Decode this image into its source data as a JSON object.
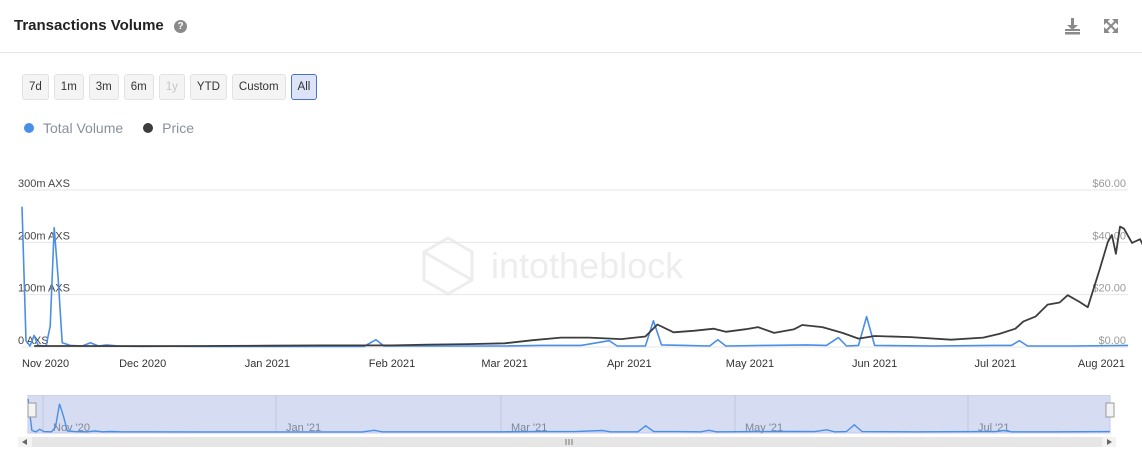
{
  "header": {
    "title": "Transactions Volume",
    "help_icon": "question-circle-icon",
    "download_icon": "download-icon",
    "fullscreen_icon": "expand-icon"
  },
  "range_buttons": [
    {
      "label": "7d",
      "state": "normal"
    },
    {
      "label": "1m",
      "state": "normal"
    },
    {
      "label": "3m",
      "state": "normal"
    },
    {
      "label": "6m",
      "state": "normal"
    },
    {
      "label": "1y",
      "state": "disabled"
    },
    {
      "label": "YTD",
      "state": "normal"
    },
    {
      "label": "Custom",
      "state": "normal"
    },
    {
      "label": "All",
      "state": "active"
    }
  ],
  "watermark": "intotheblock",
  "chart_data": {
    "type": "line",
    "title": "Transactions Volume",
    "legend_position": "top-left",
    "grid": true,
    "x_range": [
      "2020-11-01",
      "2021-08-03"
    ],
    "x_ticks": [
      "Nov 2020",
      "Dec 2020",
      "Jan 2021",
      "Feb 2021",
      "Mar 2021",
      "Apr 2021",
      "May 2021",
      "Jun 2021",
      "Jul 2021",
      "Aug 2021"
    ],
    "y_left": {
      "ticks": [
        "0 AXS",
        "100m AXS",
        "200m AXS",
        "300m AXS"
      ],
      "range": [
        0,
        300
      ]
    },
    "y_right": {
      "ticks": [
        "$0.00",
        "$20.00",
        "$40.00",
        "$60.00"
      ],
      "range": [
        0,
        60
      ]
    },
    "series": [
      {
        "name": "Total Volume",
        "color": "#4a8fe7",
        "axis": "left",
        "points": [
          [
            "2020-11-01",
            268
          ],
          [
            "2020-11-02",
            12
          ],
          [
            "2020-11-03",
            2
          ],
          [
            "2020-11-04",
            22
          ],
          [
            "2020-11-05",
            3
          ],
          [
            "2020-11-07",
            2
          ],
          [
            "2020-11-08",
            40
          ],
          [
            "2020-11-09",
            228
          ],
          [
            "2020-11-10",
            130
          ],
          [
            "2020-11-11",
            8
          ],
          [
            "2020-11-13",
            3
          ],
          [
            "2020-11-16",
            2
          ],
          [
            "2020-11-18",
            8
          ],
          [
            "2020-11-20",
            2
          ],
          [
            "2020-11-22",
            4
          ],
          [
            "2020-11-25",
            2
          ],
          [
            "2020-12-01",
            2
          ],
          [
            "2020-12-15",
            1
          ],
          [
            "2021-01-01",
            1
          ],
          [
            "2021-01-15",
            1
          ],
          [
            "2021-01-25",
            1
          ],
          [
            "2021-01-28",
            14
          ],
          [
            "2021-01-30",
            2
          ],
          [
            "2021-02-15",
            2
          ],
          [
            "2021-03-01",
            2
          ],
          [
            "2021-03-10",
            3
          ],
          [
            "2021-03-20",
            3
          ],
          [
            "2021-03-27",
            12
          ],
          [
            "2021-03-29",
            2
          ],
          [
            "2021-04-05",
            2
          ],
          [
            "2021-04-07",
            50
          ],
          [
            "2021-04-09",
            4
          ],
          [
            "2021-04-15",
            3
          ],
          [
            "2021-04-21",
            2
          ],
          [
            "2021-04-23",
            14
          ],
          [
            "2021-04-25",
            2
          ],
          [
            "2021-05-05",
            3
          ],
          [
            "2021-05-15",
            4
          ],
          [
            "2021-05-20",
            3
          ],
          [
            "2021-05-23",
            18
          ],
          [
            "2021-05-25",
            2
          ],
          [
            "2021-05-28",
            3
          ],
          [
            "2021-05-30",
            58
          ],
          [
            "2021-06-01",
            3
          ],
          [
            "2021-06-15",
            2
          ],
          [
            "2021-06-30",
            3
          ],
          [
            "2021-07-05",
            3
          ],
          [
            "2021-07-07",
            12
          ],
          [
            "2021-07-09",
            2
          ],
          [
            "2021-07-20",
            2
          ],
          [
            "2021-08-03",
            3
          ]
        ]
      },
      {
        "name": "Price",
        "color": "#3d3d3d",
        "axis": "right",
        "points": [
          [
            "2020-11-04",
            0.4
          ],
          [
            "2020-11-15",
            0.4
          ],
          [
            "2020-12-01",
            0.3
          ],
          [
            "2020-12-15",
            0.4
          ],
          [
            "2021-01-01",
            0.5
          ],
          [
            "2021-01-15",
            0.6
          ],
          [
            "2021-02-01",
            0.6
          ],
          [
            "2021-02-10",
            0.9
          ],
          [
            "2021-02-20",
            1.1
          ],
          [
            "2021-03-01",
            1.4
          ],
          [
            "2021-03-08",
            2.6
          ],
          [
            "2021-03-15",
            3.6
          ],
          [
            "2021-03-22",
            3.6
          ],
          [
            "2021-03-30",
            3.0
          ],
          [
            "2021-04-05",
            4.0
          ],
          [
            "2021-04-08",
            8.6
          ],
          [
            "2021-04-12",
            5.6
          ],
          [
            "2021-04-17",
            6.2
          ],
          [
            "2021-04-22",
            7.0
          ],
          [
            "2021-04-25",
            5.8
          ],
          [
            "2021-04-30",
            6.8
          ],
          [
            "2021-05-03",
            7.6
          ],
          [
            "2021-05-07",
            5.4
          ],
          [
            "2021-05-12",
            6.8
          ],
          [
            "2021-05-14",
            8.4
          ],
          [
            "2021-05-19",
            7.6
          ],
          [
            "2021-05-24",
            5.4
          ],
          [
            "2021-05-28",
            3.2
          ],
          [
            "2021-06-01",
            4.2
          ],
          [
            "2021-06-10",
            3.8
          ],
          [
            "2021-06-20",
            2.8
          ],
          [
            "2021-06-28",
            3.6
          ],
          [
            "2021-07-02",
            5.0
          ],
          [
            "2021-07-06",
            7.0
          ],
          [
            "2021-07-08",
            9.8
          ],
          [
            "2021-07-11",
            11.6
          ],
          [
            "2021-07-14",
            16.2
          ],
          [
            "2021-07-17",
            17.0
          ],
          [
            "2021-07-19",
            19.8
          ],
          [
            "2021-07-22",
            17.2
          ],
          [
            "2021-07-24",
            15.2
          ],
          [
            "2021-07-27",
            29.8
          ],
          [
            "2021-07-29",
            40.2
          ],
          [
            "2021-07-30",
            42.8
          ],
          [
            "2021-07-31",
            35.6
          ],
          [
            "2021-08-01",
            46.0
          ],
          [
            "2021-08-02",
            45.2
          ],
          [
            "2021-08-04",
            39.8
          ],
          [
            "2021-08-06",
            41.2
          ],
          [
            "2021-08-07",
            38.0
          ],
          [
            "2021-08-08",
            43.0
          ]
        ]
      }
    ]
  },
  "navigator": {
    "labels": [
      "Nov '20",
      "Jan '21",
      "Mar '21",
      "May '21",
      "Jul '21"
    ],
    "selected_range": "all"
  }
}
